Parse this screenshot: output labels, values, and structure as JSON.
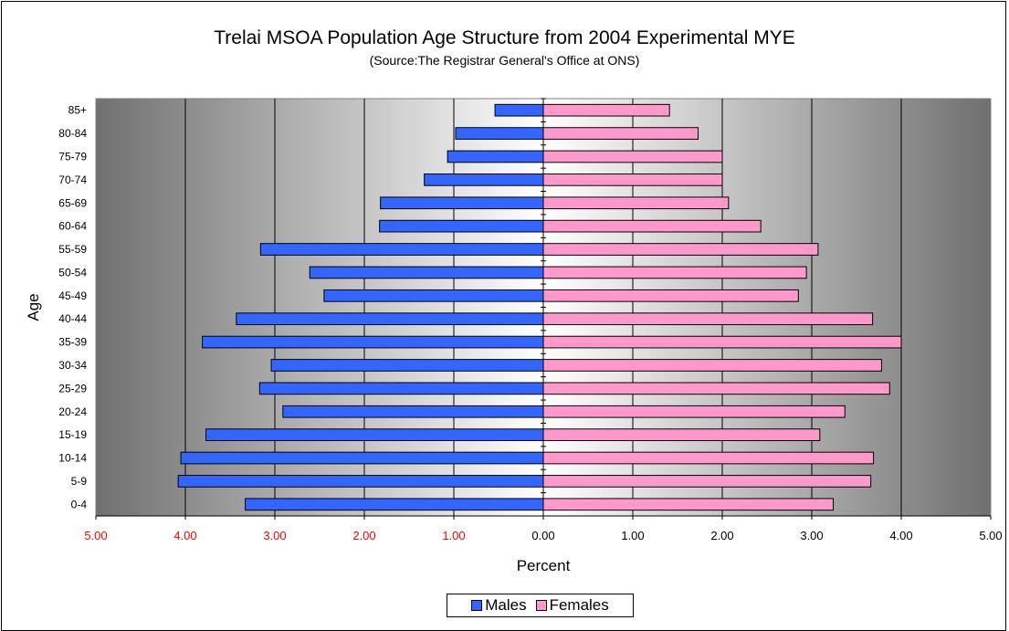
{
  "chart_data": {
    "type": "bar",
    "orientation": "horizontal",
    "title": "Trelai MSOA Population Age Structure from 2004 Experimental MYE",
    "subtitle": "(Source:The Registrar General's Office at ONS)",
    "xlabel": "Percent",
    "ylabel": "Age",
    "xlim": [
      -5,
      5
    ],
    "x_ticks": [
      "5.00",
      "4.00",
      "3.00",
      "2.00",
      "1.00",
      "0.00",
      "1.00",
      "2.00",
      "3.00",
      "4.00",
      "5.00"
    ],
    "categories": [
      "0-4",
      "5-9",
      "10-14",
      "15-19",
      "20-24",
      "25-29",
      "30-34",
      "35-39",
      "40-44",
      "45-49",
      "50-54",
      "55-59",
      "60-64",
      "65-69",
      "70-74",
      "75-79",
      "80-84",
      "85+"
    ],
    "series": [
      {
        "name": "Males",
        "color": "#3366ff",
        "direction": "left",
        "values": [
          3.33,
          4.08,
          4.05,
          3.77,
          2.91,
          3.17,
          3.04,
          3.81,
          3.43,
          2.45,
          2.61,
          3.16,
          1.83,
          1.82,
          1.33,
          1.07,
          0.98,
          0.54
        ]
      },
      {
        "name": "Females",
        "color": "#ff99cc",
        "direction": "right",
        "values": [
          3.24,
          3.66,
          3.69,
          3.09,
          3.37,
          3.87,
          3.78,
          4.0,
          3.68,
          2.85,
          2.94,
          3.07,
          2.43,
          2.07,
          2.0,
          2.0,
          1.73,
          1.41
        ]
      }
    ],
    "grid": true,
    "legend_position": "bottom"
  }
}
